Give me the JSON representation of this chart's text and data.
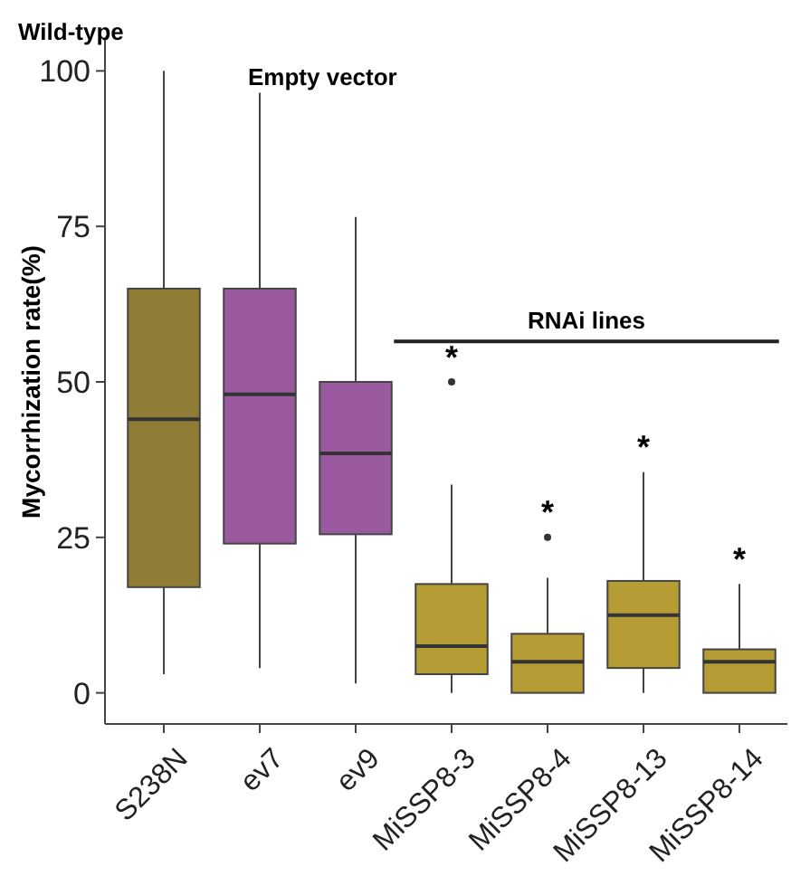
{
  "chart_data": {
    "type": "box",
    "ylabel": "Mycorrhization rate(%)",
    "categories": [
      "S238N",
      "ev7",
      "ev9",
      "MiSSP8-3",
      "MiSSP8-4",
      "MiSSP8-13",
      "MiSSP8-14"
    ],
    "colors": [
      "#8f7d35",
      "#9b5aa0",
      "#9b5aa0",
      "#b59c35",
      "#b59c35",
      "#b59c35",
      "#b59c35"
    ],
    "boxes": [
      {
        "low": 3,
        "q1": 17,
        "median": 44,
        "q3": 65,
        "high": 100
      },
      {
        "low": 4,
        "q1": 24,
        "median": 48,
        "q3": 65,
        "high": 96.5
      },
      {
        "low": 1.5,
        "q1": 25.5,
        "median": 38.5,
        "q3": 50,
        "high": 76.5
      },
      {
        "low": 0,
        "q1": 3,
        "median": 7.5,
        "q3": 17.5,
        "high": 33.5,
        "outliers": [
          50
        ]
      },
      {
        "low": 0,
        "q1": 0,
        "median": 5,
        "q3": 9.5,
        "high": 18.5,
        "outliers": [
          25
        ]
      },
      {
        "low": 0,
        "q1": 4,
        "median": 12.5,
        "q3": 18,
        "high": 35.5
      },
      {
        "low": 0,
        "q1": 0,
        "median": 5,
        "q3": 7,
        "high": 17.5
      }
    ],
    "ylim": [
      -5,
      105
    ],
    "yticks": [
      0,
      25,
      50,
      75,
      100
    ],
    "grid": false,
    "annotations": [
      "Wild-type",
      "Empty vector",
      "RNAi lines",
      "*",
      "*",
      "*",
      "*"
    ]
  }
}
